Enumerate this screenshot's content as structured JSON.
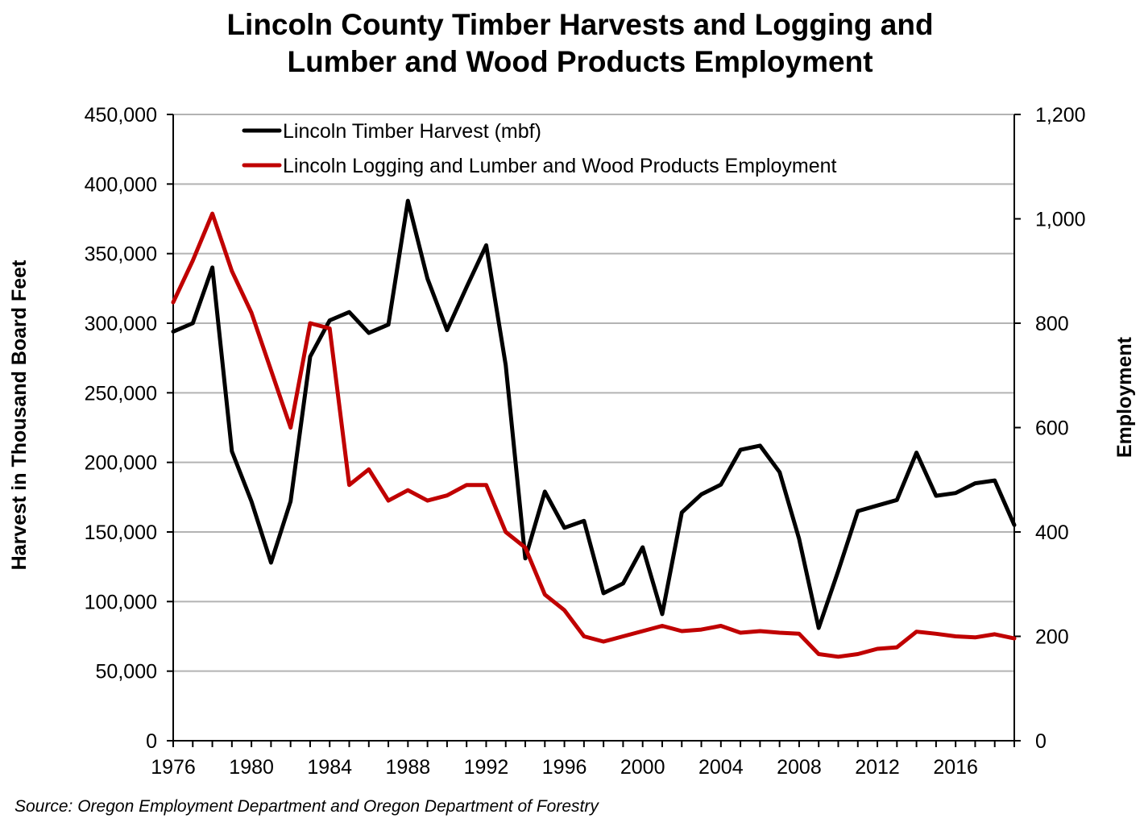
{
  "chart_data": {
    "type": "line",
    "title_lines": [
      "Lincoln County Timber Harvests and Logging and",
      "Lumber and Wood Products Employment"
    ],
    "ylabel": "Harvest in Thousand Board Feet",
    "y2label": "Employment",
    "source": "Source: Oregon Employment Department and Oregon Department of Forestry",
    "x": [
      1976,
      1977,
      1978,
      1979,
      1980,
      1981,
      1982,
      1983,
      1984,
      1985,
      1986,
      1987,
      1988,
      1989,
      1990,
      1991,
      1992,
      1993,
      1994,
      1995,
      1996,
      1997,
      1998,
      1999,
      2000,
      2001,
      2002,
      2003,
      2004,
      2005,
      2006,
      2007,
      2008,
      2009,
      2010,
      2011,
      2012,
      2013,
      2014,
      2015,
      2016,
      2017,
      2018,
      2019
    ],
    "xlim": [
      1976,
      2019
    ],
    "xticks": [
      "1976",
      "1980",
      "1984",
      "1988",
      "1992",
      "1996",
      "2000",
      "2004",
      "2008",
      "2012",
      "2016"
    ],
    "ylim": [
      0,
      450000
    ],
    "yticks": [
      "0",
      "50,000",
      "100,000",
      "150,000",
      "200,000",
      "250,000",
      "300,000",
      "350,000",
      "400,000",
      "450,000"
    ],
    "y2lim": [
      0,
      1200
    ],
    "y2ticks": [
      "0",
      "200",
      "400",
      "600",
      "800",
      "1,000",
      "1,200"
    ],
    "grid": "horizontal",
    "legend_position": "top-left",
    "series": [
      {
        "name": "Lincoln Timber Harvest (mbf)",
        "axis": "left",
        "color": "#000000",
        "values": [
          294000,
          300000,
          340000,
          208000,
          172000,
          128000,
          172000,
          276000,
          302000,
          308000,
          293000,
          299000,
          388000,
          332000,
          295000,
          326000,
          356000,
          270000,
          131000,
          179000,
          153000,
          158000,
          106000,
          113000,
          139000,
          91000,
          164000,
          177000,
          184000,
          209000,
          212000,
          193000,
          145000,
          81000,
          122000,
          165000,
          169000,
          173000,
          207000,
          176000,
          178000,
          185000,
          187000,
          155000
        ]
      },
      {
        "name": "Lincoln Logging and Lumber and Wood Products Employment",
        "axis": "right",
        "color": "#C00000",
        "values": [
          840,
          920,
          1010,
          900,
          820,
          710,
          600,
          800,
          790,
          490,
          520,
          460,
          480,
          460,
          470,
          490,
          490,
          400,
          370,
          280,
          250,
          200,
          190,
          200,
          210,
          220,
          210,
          213,
          220,
          207,
          210,
          207,
          205,
          166,
          161,
          166,
          176,
          179,
          209,
          205,
          200,
          198,
          204,
          196
        ]
      }
    ]
  }
}
